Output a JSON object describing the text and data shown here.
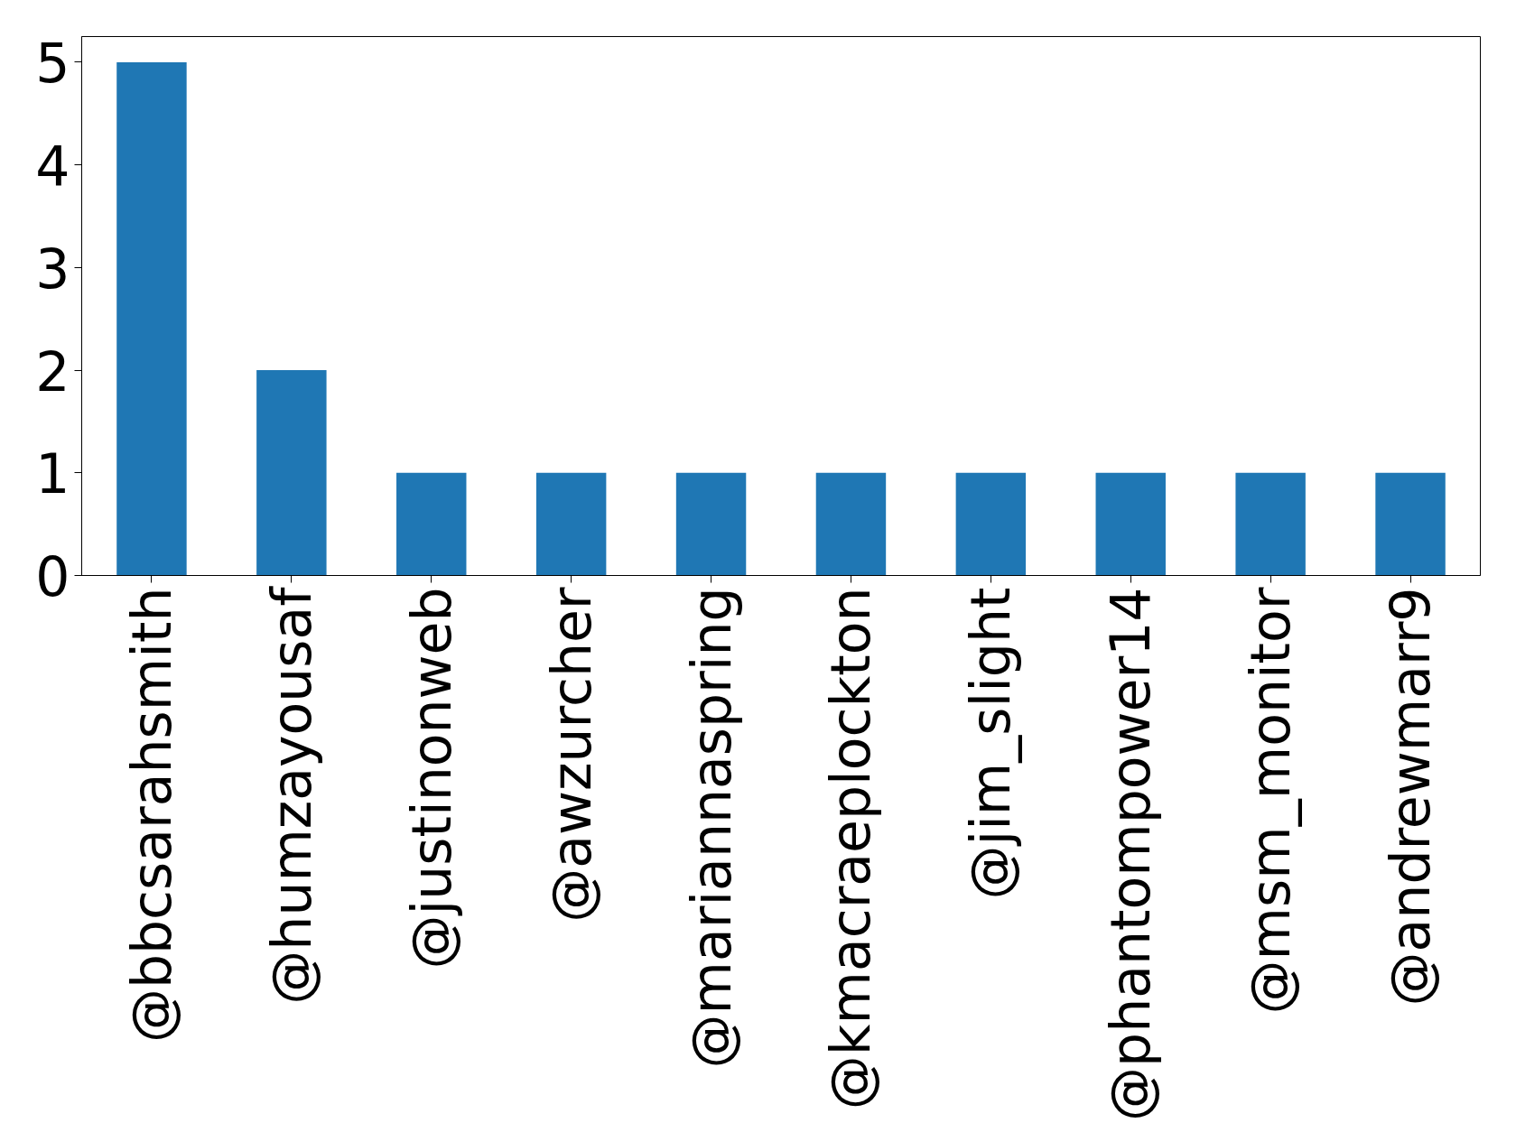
{
  "chart_data": {
    "type": "bar",
    "categories": [
      "@bbcsarahsmith",
      "@humzayousaf",
      "@justinonweb",
      "@awzurcher",
      "@mariannaspring",
      "@kmacraeplockton",
      "@jim_slight",
      "@phantompower14",
      "@msm_monitor",
      "@andrewmarr9"
    ],
    "values": [
      5,
      2,
      1,
      1,
      1,
      1,
      1,
      1,
      1,
      1
    ],
    "color": "#1f77b4",
    "ylim": [
      0,
      5.25
    ],
    "yticks": [
      0,
      1,
      2,
      3,
      4,
      5
    ],
    "grid": false
  }
}
